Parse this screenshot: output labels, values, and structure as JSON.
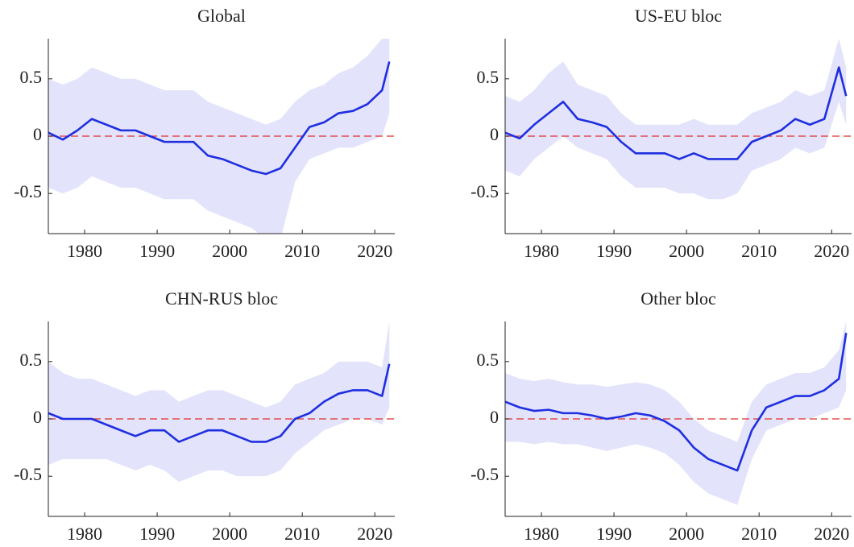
{
  "chart_data": [
    {
      "type": "line",
      "title": "Global",
      "x": [
        1975,
        1977,
        1979,
        1981,
        1983,
        1985,
        1987,
        1989,
        1991,
        1993,
        1995,
        1997,
        1999,
        2001,
        2003,
        2005,
        2007,
        2009,
        2011,
        2013,
        2015,
        2017,
        2019,
        2021,
        2022
      ],
      "values": [
        0.03,
        -0.03,
        0.05,
        0.15,
        0.1,
        0.05,
        0.05,
        0.0,
        -0.05,
        -0.05,
        -0.05,
        -0.17,
        -0.2,
        -0.25,
        -0.3,
        -0.33,
        -0.28,
        -0.1,
        0.08,
        0.12,
        0.2,
        0.22,
        0.28,
        0.4,
        0.65
      ],
      "band_lower": [
        -0.45,
        -0.5,
        -0.45,
        -0.35,
        -0.4,
        -0.45,
        -0.45,
        -0.5,
        -0.55,
        -0.55,
        -0.55,
        -0.65,
        -0.7,
        -0.75,
        -0.8,
        -0.9,
        -0.9,
        -0.4,
        -0.2,
        -0.15,
        -0.1,
        -0.1,
        -0.05,
        0.0,
        0.2
      ],
      "band_upper": [
        0.5,
        0.45,
        0.5,
        0.6,
        0.55,
        0.5,
        0.5,
        0.45,
        0.4,
        0.4,
        0.4,
        0.3,
        0.25,
        0.2,
        0.15,
        0.1,
        0.15,
        0.3,
        0.4,
        0.45,
        0.55,
        0.6,
        0.7,
        0.85,
        1.0
      ],
      "color": "#1f2fe0",
      "band_color": "#e3e3fb",
      "hline": 0,
      "hline_color": "#e0302a",
      "xlim": [
        1975,
        2022.75
      ],
      "ylim": [
        -0.85,
        0.85
      ],
      "xticks": [
        1980,
        1990,
        2000,
        2010,
        2020
      ],
      "yticks": [
        -0.5,
        0,
        0.5
      ]
    },
    {
      "type": "line",
      "title": "US-EU bloc",
      "x": [
        1975,
        1977,
        1979,
        1981,
        1983,
        1985,
        1987,
        1989,
        1991,
        1993,
        1995,
        1997,
        1999,
        2001,
        2003,
        2005,
        2007,
        2009,
        2011,
        2013,
        2015,
        2017,
        2019,
        2021,
        2022
      ],
      "values": [
        0.03,
        -0.02,
        0.1,
        0.2,
        0.3,
        0.15,
        0.12,
        0.08,
        -0.05,
        -0.15,
        -0.15,
        -0.15,
        -0.2,
        -0.15,
        -0.2,
        -0.2,
        -0.2,
        -0.05,
        0.0,
        0.05,
        0.15,
        0.1,
        0.15,
        0.6,
        0.35
      ],
      "band_lower": [
        -0.3,
        -0.35,
        -0.2,
        -0.1,
        0.0,
        -0.1,
        -0.15,
        -0.2,
        -0.35,
        -0.45,
        -0.45,
        -0.45,
        -0.5,
        -0.5,
        -0.55,
        -0.55,
        -0.5,
        -0.3,
        -0.25,
        -0.2,
        -0.1,
        -0.15,
        -0.1,
        0.3,
        0.1
      ],
      "band_upper": [
        0.35,
        0.3,
        0.4,
        0.55,
        0.65,
        0.45,
        0.4,
        0.35,
        0.2,
        0.1,
        0.1,
        0.1,
        0.1,
        0.15,
        0.1,
        0.1,
        0.1,
        0.2,
        0.25,
        0.3,
        0.4,
        0.35,
        0.4,
        0.85,
        0.6
      ],
      "color": "#1f2fe0",
      "band_color": "#e3e3fb",
      "hline": 0,
      "hline_color": "#e0302a",
      "xlim": [
        1975,
        2022.75
      ],
      "ylim": [
        -0.85,
        0.85
      ],
      "xticks": [
        1980,
        1990,
        2000,
        2010,
        2020
      ],
      "yticks": [
        -0.5,
        0,
        0.5
      ]
    },
    {
      "type": "line",
      "title": "CHN-RUS bloc",
      "x": [
        1975,
        1977,
        1979,
        1981,
        1983,
        1985,
        1987,
        1989,
        1991,
        1993,
        1995,
        1997,
        1999,
        2001,
        2003,
        2005,
        2007,
        2009,
        2011,
        2013,
        2015,
        2017,
        2019,
        2021,
        2022
      ],
      "values": [
        0.05,
        0.0,
        0.0,
        0.0,
        -0.05,
        -0.1,
        -0.15,
        -0.1,
        -0.1,
        -0.2,
        -0.15,
        -0.1,
        -0.1,
        -0.15,
        -0.2,
        -0.2,
        -0.15,
        0.0,
        0.05,
        0.15,
        0.22,
        0.25,
        0.25,
        0.2,
        0.48
      ],
      "band_lower": [
        -0.4,
        -0.35,
        -0.35,
        -0.35,
        -0.35,
        -0.4,
        -0.45,
        -0.4,
        -0.45,
        -0.55,
        -0.5,
        -0.45,
        -0.45,
        -0.5,
        -0.5,
        -0.5,
        -0.45,
        -0.3,
        -0.2,
        -0.1,
        -0.05,
        0.0,
        0.0,
        -0.05,
        0.1
      ],
      "band_upper": [
        0.5,
        0.4,
        0.35,
        0.35,
        0.3,
        0.25,
        0.2,
        0.25,
        0.25,
        0.15,
        0.2,
        0.25,
        0.25,
        0.2,
        0.15,
        0.1,
        0.15,
        0.3,
        0.35,
        0.4,
        0.5,
        0.5,
        0.5,
        0.45,
        0.85
      ],
      "color": "#1f2fe0",
      "band_color": "#e3e3fb",
      "hline": 0,
      "hline_color": "#e0302a",
      "xlim": [
        1975,
        2022.75
      ],
      "ylim": [
        -0.85,
        0.85
      ],
      "xticks": [
        1980,
        1990,
        2000,
        2010,
        2020
      ],
      "yticks": [
        -0.5,
        0,
        0.5
      ]
    },
    {
      "type": "line",
      "title": "Other bloc",
      "x": [
        1975,
        1977,
        1979,
        1981,
        1983,
        1985,
        1987,
        1989,
        1991,
        1993,
        1995,
        1997,
        1999,
        2001,
        2003,
        2005,
        2007,
        2009,
        2011,
        2013,
        2015,
        2017,
        2019,
        2021,
        2022
      ],
      "values": [
        0.15,
        0.1,
        0.07,
        0.08,
        0.05,
        0.05,
        0.03,
        0.0,
        0.02,
        0.05,
        0.03,
        -0.02,
        -0.1,
        -0.25,
        -0.35,
        -0.4,
        -0.45,
        -0.1,
        0.1,
        0.15,
        0.2,
        0.2,
        0.25,
        0.35,
        0.75
      ],
      "band_lower": [
        -0.2,
        -0.2,
        -0.22,
        -0.2,
        -0.22,
        -0.22,
        -0.25,
        -0.28,
        -0.25,
        -0.22,
        -0.25,
        -0.3,
        -0.4,
        -0.55,
        -0.65,
        -0.7,
        -0.75,
        -0.35,
        -0.1,
        -0.05,
        0.0,
        0.0,
        0.05,
        0.1,
        0.25
      ],
      "band_upper": [
        0.4,
        0.35,
        0.33,
        0.35,
        0.32,
        0.3,
        0.3,
        0.28,
        0.3,
        0.32,
        0.3,
        0.25,
        0.15,
        0.0,
        -0.1,
        -0.15,
        -0.2,
        0.15,
        0.3,
        0.35,
        0.4,
        0.4,
        0.45,
        0.6,
        0.85
      ],
      "color": "#1f2fe0",
      "band_color": "#e3e3fb",
      "hline": 0,
      "hline_color": "#e0302a",
      "xlim": [
        1975,
        2022.75
      ],
      "ylim": [
        -0.85,
        0.85
      ],
      "xticks": [
        1980,
        1990,
        2000,
        2010,
        2020
      ],
      "yticks": [
        -0.5,
        0,
        0.5
      ]
    }
  ]
}
